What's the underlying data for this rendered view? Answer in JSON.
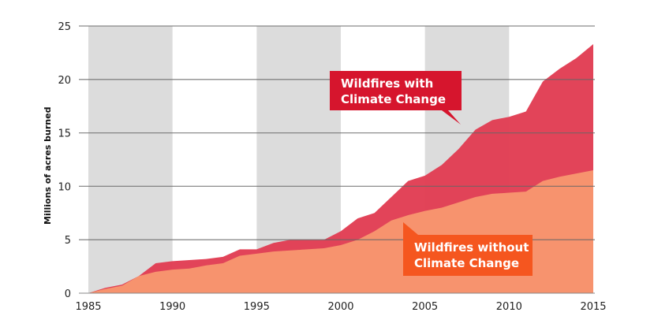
{
  "chart_data": {
    "type": "area",
    "title": "",
    "xlabel": "",
    "ylabel": "Millions of acres burned",
    "xlim": [
      1985,
      2015
    ],
    "ylim": [
      0,
      25
    ],
    "x_ticks": [
      "1985",
      "1990",
      "1995",
      "2000",
      "2005",
      "2010",
      "2015"
    ],
    "y_ticks": [
      "0",
      "5",
      "10",
      "15",
      "20",
      "25"
    ],
    "grid": "horizontal",
    "shaded_bands": [
      [
        1985,
        1990
      ],
      [
        1995,
        2000
      ],
      [
        2005,
        2010
      ]
    ],
    "x": [
      1985,
      1986,
      1987,
      1988,
      1989,
      1990,
      1991,
      1992,
      1993,
      1994,
      1995,
      1996,
      1997,
      1998,
      1999,
      2000,
      2001,
      2002,
      2003,
      2004,
      2005,
      2006,
      2007,
      2008,
      2009,
      2010,
      2011,
      2012,
      2013,
      2014,
      2015
    ],
    "series": [
      {
        "name": "Wildfires with Climate Change",
        "color": "#e03a50",
        "label": [
          "Wildfires with",
          "Climate Change"
        ],
        "label_color": "#d6152d",
        "values": [
          0,
          0.5,
          0.8,
          1.6,
          2.8,
          3.0,
          3.1,
          3.2,
          3.4,
          4.1,
          4.1,
          4.7,
          5.0,
          5.0,
          5.0,
          5.8,
          7.0,
          7.5,
          9.0,
          10.5,
          11.0,
          12.0,
          13.5,
          15.3,
          16.2,
          16.5,
          17.0,
          19.8,
          21.0,
          22.0,
          23.3
        ]
      },
      {
        "name": "Wildfires without Climate Change",
        "color": "#f99a70",
        "label": [
          "Wildfires without",
          "Climate Change"
        ],
        "label_color": "#f5561f",
        "values": [
          0,
          0.4,
          0.7,
          1.6,
          2.0,
          2.2,
          2.3,
          2.6,
          2.8,
          3.5,
          3.7,
          3.9,
          4.0,
          4.1,
          4.2,
          4.5,
          5.0,
          5.8,
          6.8,
          7.3,
          7.7,
          8.0,
          8.5,
          9.0,
          9.3,
          9.4,
          9.5,
          10.5,
          10.9,
          11.2,
          11.5
        ]
      }
    ]
  }
}
